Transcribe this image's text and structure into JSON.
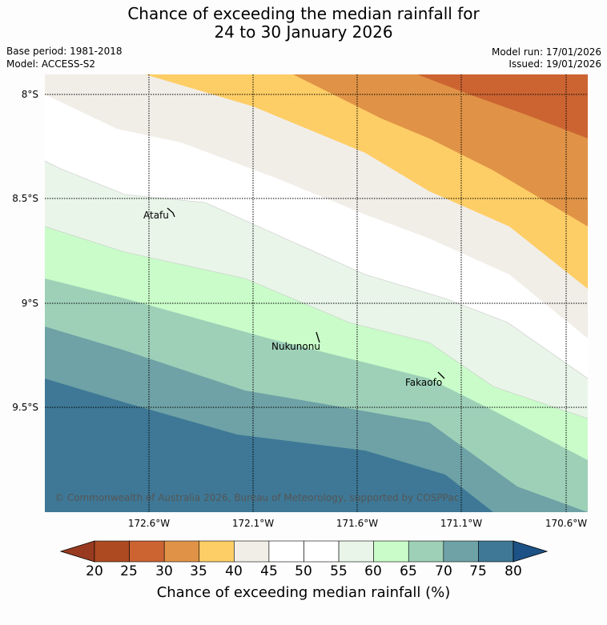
{
  "title": {
    "line1": "Chance of exceeding the median rainfall for",
    "line2": "24 to 30 January 2026"
  },
  "meta": {
    "base_period": "Base period: 1981-2018",
    "model": "Model: ACCESS-S2",
    "model_run": "Model run: 17/01/2026",
    "issued": "Issued: 19/01/2026"
  },
  "map": {
    "lat_labels": [
      "8°S",
      "8.5°S",
      "9°S",
      "9.5°S"
    ],
    "lon_labels": [
      "172.6°W",
      "172.1°W",
      "171.6°W",
      "171.1°W",
      "170.6°W"
    ],
    "places": [
      "Atafu",
      "Nukunonu",
      "Fakaofo"
    ],
    "copyright": "© Commonwealth of Australia 2026, Bureau of Meteorology, supported by COSPPac",
    "band_colors": [
      "#3e7896",
      "#6ea2a6",
      "#9ed0b8",
      "#c9fcc9",
      "#e9f5e9",
      "#ffffff",
      "#f1eee8",
      "#fece66",
      "#e09346",
      "#cc6432"
    ]
  },
  "colorbar": {
    "labels": [
      "20",
      "25",
      "30",
      "35",
      "40",
      "45",
      "50",
      "55",
      "60",
      "65",
      "70",
      "75",
      "80"
    ],
    "colors": [
      "#ad4a22",
      "#cc6432",
      "#e09346",
      "#fece66",
      "#f1eee8",
      "#ffffff",
      "#ffffff",
      "#e9f5e9",
      "#c9fcc9",
      "#9ed0b8",
      "#6ea2a6",
      "#3e7896"
    ],
    "under_color": "#983a20",
    "over_color": "#1d5286",
    "title": "Chance of exceeding median rainfall (%)"
  }
}
